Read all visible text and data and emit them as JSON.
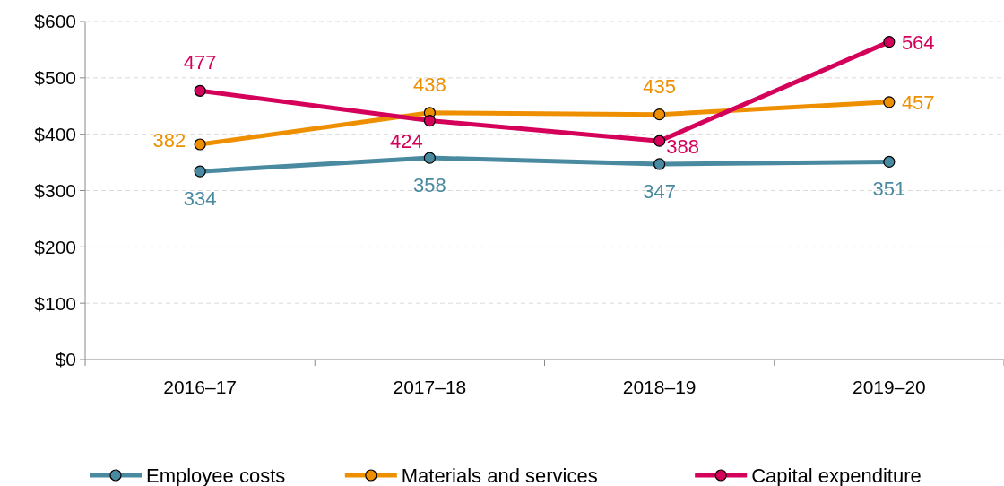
{
  "chart_data": {
    "type": "line",
    "categories": [
      "2016–17",
      "2017–18",
      "2018–19",
      "2019–20"
    ],
    "series": [
      {
        "name": "Employee costs",
        "color": "#4a8aa0",
        "values": [
          334,
          358,
          347,
          351
        ]
      },
      {
        "name": "Materials and services",
        "color": "#ee8f00",
        "values": [
          382,
          438,
          435,
          457
        ]
      },
      {
        "name": "Capital expenditure",
        "color": "#d4005a",
        "values": [
          477,
          424,
          388,
          564
        ]
      }
    ],
    "ylim": [
      0,
      600
    ],
    "yticks": [
      {
        "value": 0,
        "label": "$0"
      },
      {
        "value": 100,
        "label": "$100"
      },
      {
        "value": 200,
        "label": "$200"
      },
      {
        "value": 300,
        "label": "$300"
      },
      {
        "value": 400,
        "label": "$400"
      },
      {
        "value": 500,
        "label": "$500"
      },
      {
        "value": 600,
        "label": "$600"
      }
    ],
    "grid": "y",
    "legend": "bottom",
    "marker": "circle",
    "line_style": "solid",
    "data_labels": true
  }
}
